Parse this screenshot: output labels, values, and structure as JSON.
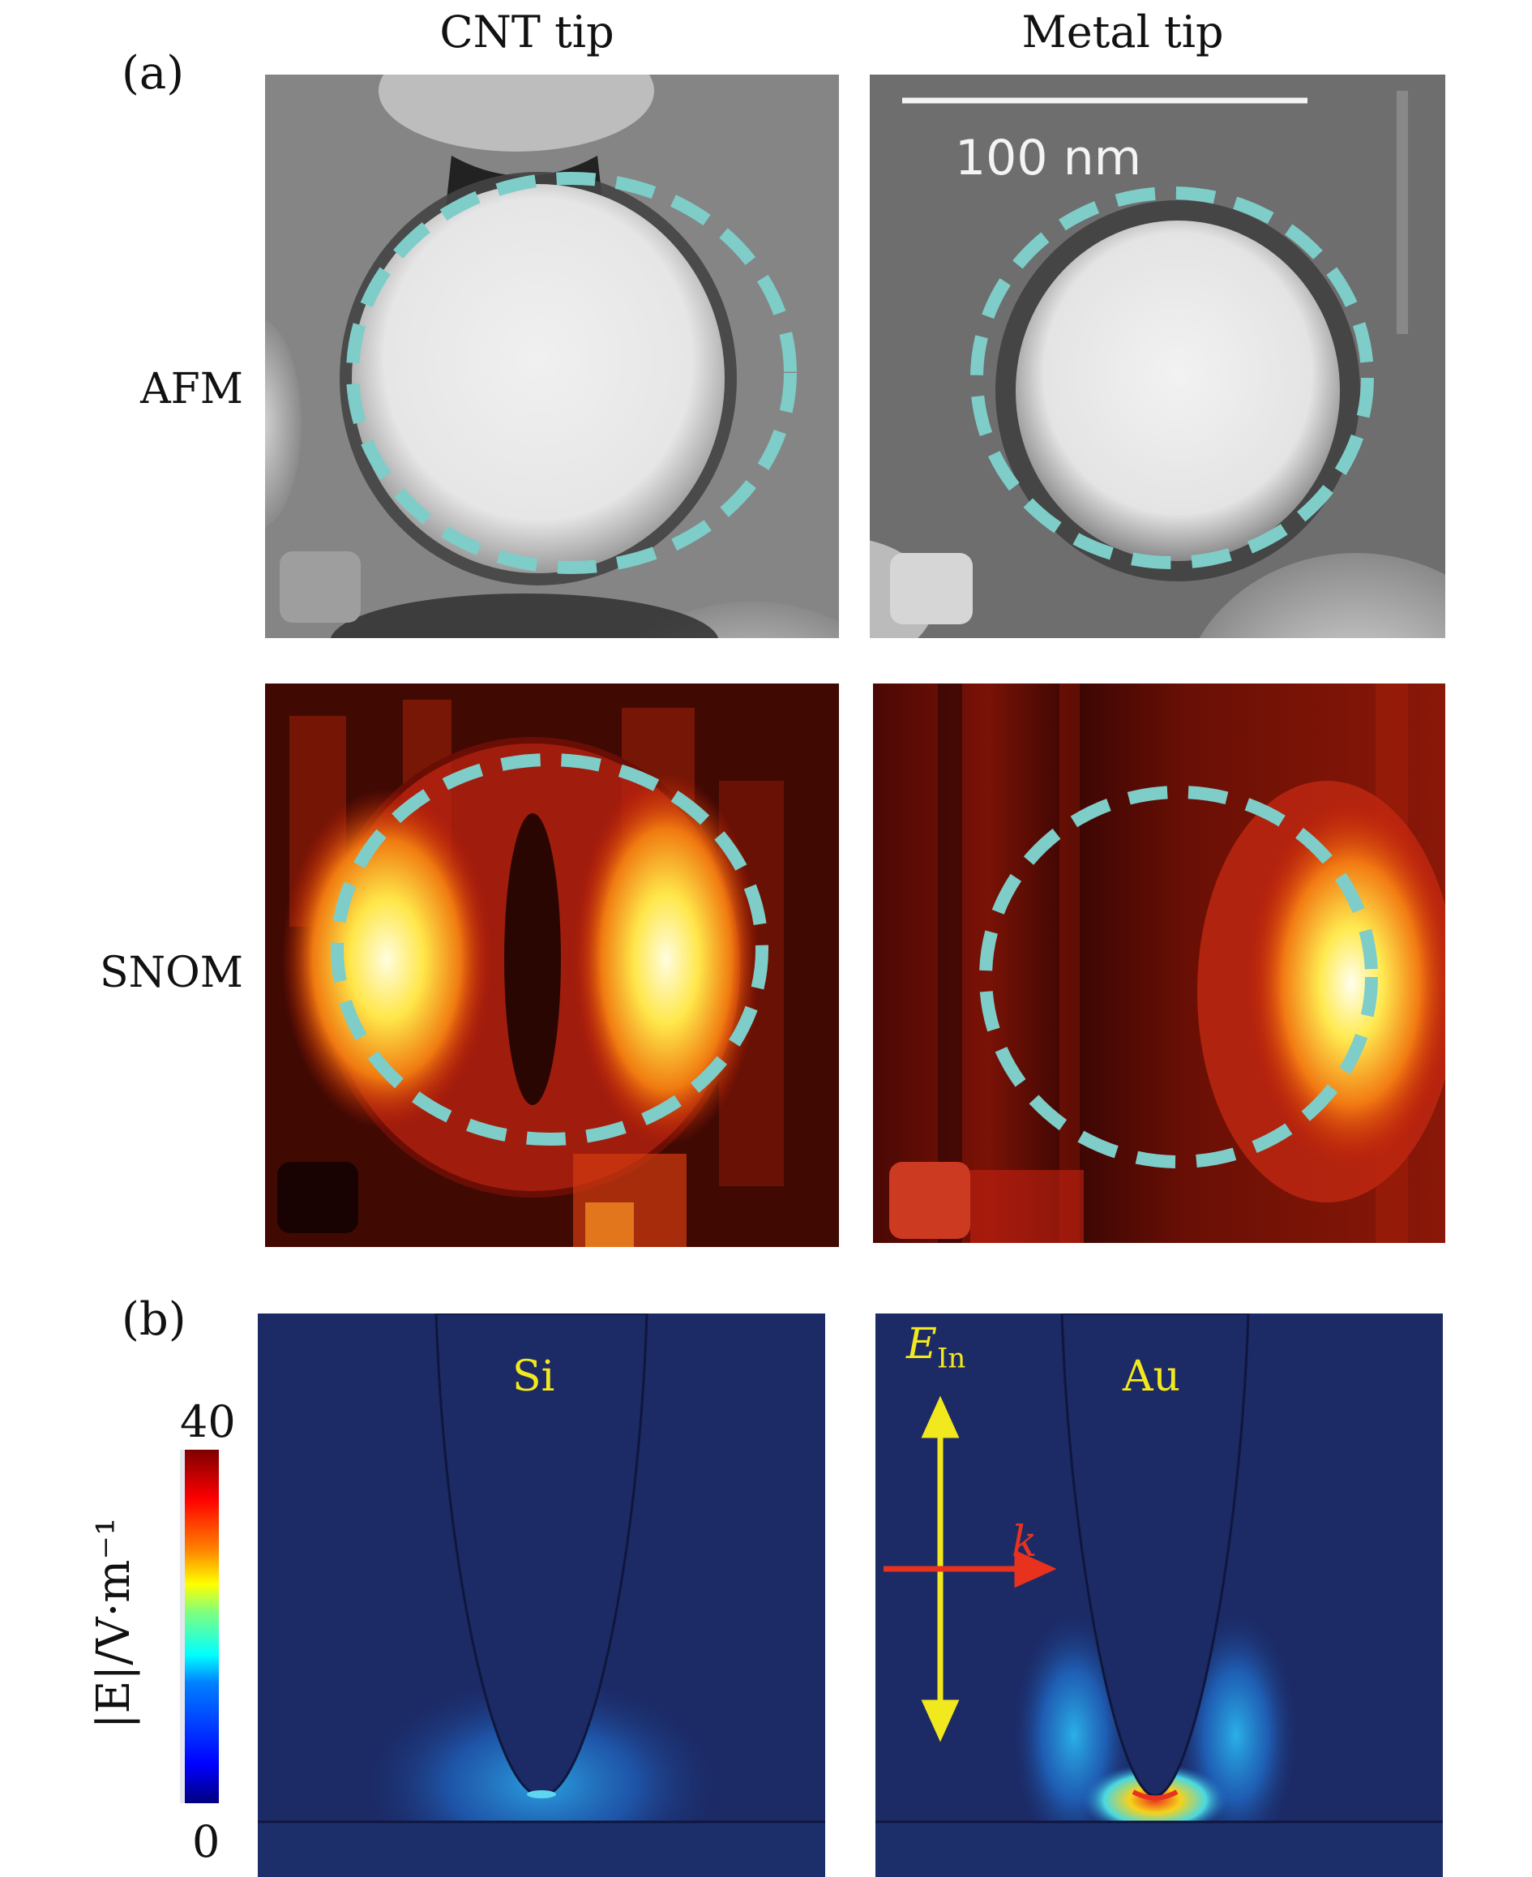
{
  "figure": {
    "panel_a_label": "(a)",
    "panel_b_label": "(b)",
    "column_titles": [
      "CNT tip",
      "Metal tip"
    ],
    "row_labels": [
      "AFM",
      "SNOM"
    ],
    "scale_bar_label": "100 nm",
    "colors": {
      "dashed_circle": "#7ecdc8",
      "sim_background": "#1c2a66",
      "field_arrow_E": "#f2e81e",
      "field_arrow_k": "#e8321e"
    }
  },
  "simulation": {
    "materials": [
      "Si",
      "Au"
    ],
    "E_symbol": "E",
    "E_subscript": "In",
    "k_symbol": "k",
    "colorbar": {
      "label": "|E|/V·m⁻¹",
      "max_label": "40",
      "min_label": "0",
      "max": 40,
      "min": 0,
      "colormap": "jet"
    }
  }
}
